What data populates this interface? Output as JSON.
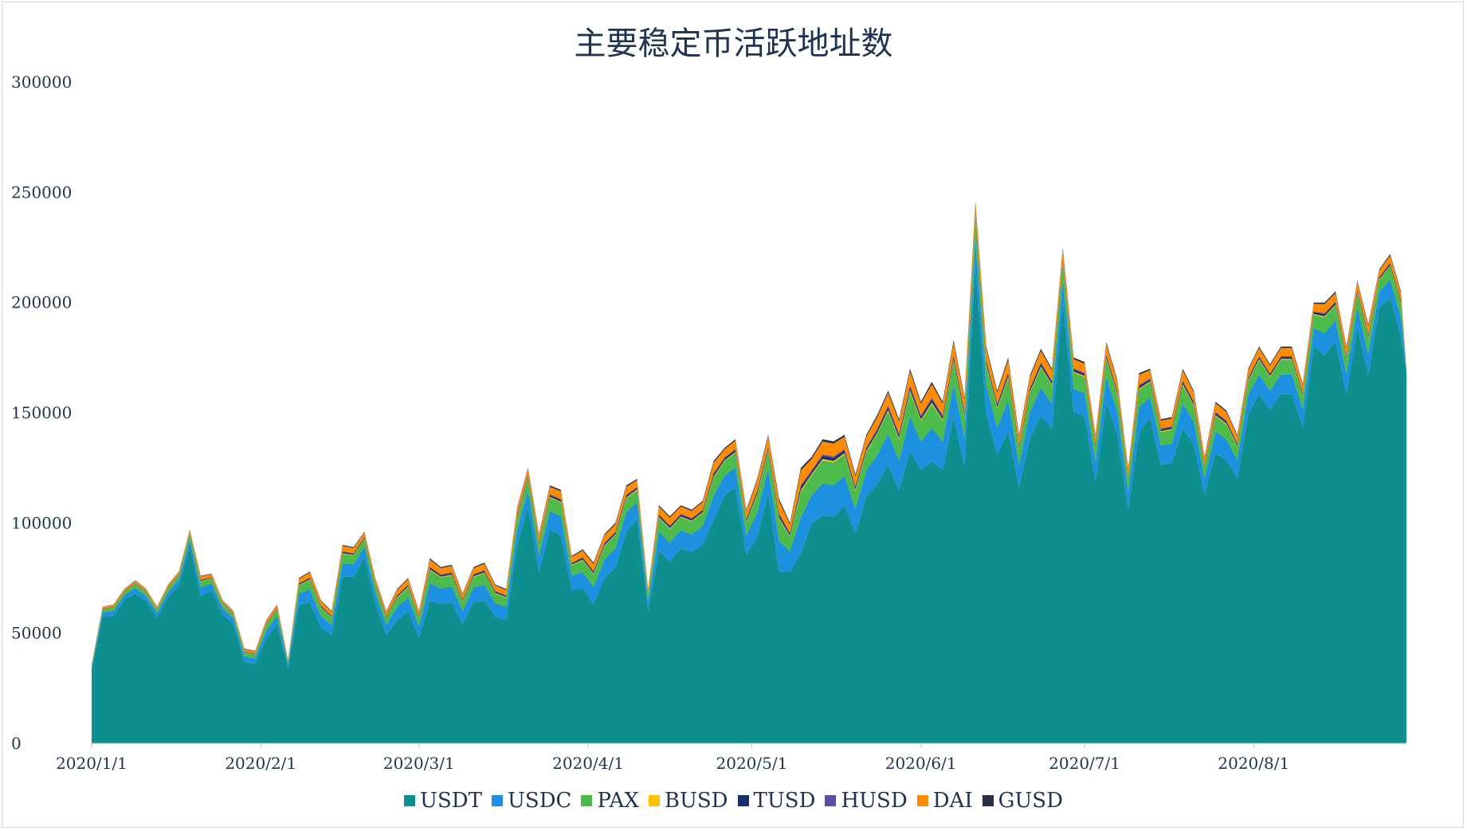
{
  "chart_data": {
    "type": "area",
    "stacked": true,
    "title": "主要稳定币活跃地址数",
    "xlabel": "",
    "ylabel": "",
    "ylim": [
      0,
      300000
    ],
    "yticks": [
      0,
      50000,
      100000,
      150000,
      200000,
      250000,
      300000
    ],
    "ytick_labels": [
      "0",
      "50000",
      "100000",
      "150000",
      "200000",
      "250000",
      "300000"
    ],
    "x_start": "2020-01-01",
    "x_end": "2020-08-29",
    "xtick_labels": [
      "2020/1/1",
      "2020/2/1",
      "2020/3/1",
      "2020/4/1",
      "2020/5/1",
      "2020/6/1",
      "2020/7/1",
      "2020/8/1"
    ],
    "xtick_dates": [
      "2020-01-01",
      "2020-02-01",
      "2020-03-01",
      "2020-04-01",
      "2020-05-01",
      "2020-06-01",
      "2020-07-01",
      "2020-08-01"
    ],
    "grid": false,
    "legend_position": "bottom",
    "total_series": {
      "name": "total",
      "dates": [
        "2020-01-01",
        "2020-01-03",
        "2020-01-05",
        "2020-01-07",
        "2020-01-09",
        "2020-01-11",
        "2020-01-13",
        "2020-01-15",
        "2020-01-17",
        "2020-01-19",
        "2020-01-21",
        "2020-01-23",
        "2020-01-25",
        "2020-01-27",
        "2020-01-29",
        "2020-01-31",
        "2020-02-02",
        "2020-02-04",
        "2020-02-06",
        "2020-02-08",
        "2020-02-10",
        "2020-02-12",
        "2020-02-14",
        "2020-02-16",
        "2020-02-18",
        "2020-02-20",
        "2020-02-22",
        "2020-02-24",
        "2020-02-26",
        "2020-02-28",
        "2020-03-01",
        "2020-03-03",
        "2020-03-05",
        "2020-03-07",
        "2020-03-09",
        "2020-03-11",
        "2020-03-13",
        "2020-03-15",
        "2020-03-17",
        "2020-03-19",
        "2020-03-21",
        "2020-03-23",
        "2020-03-25",
        "2020-03-27",
        "2020-03-29",
        "2020-03-31",
        "2020-04-02",
        "2020-04-04",
        "2020-04-06",
        "2020-04-08",
        "2020-04-10",
        "2020-04-12",
        "2020-04-14",
        "2020-04-16",
        "2020-04-18",
        "2020-04-20",
        "2020-04-22",
        "2020-04-24",
        "2020-04-26",
        "2020-04-28",
        "2020-04-30",
        "2020-05-02",
        "2020-05-04",
        "2020-05-06",
        "2020-05-08",
        "2020-05-10",
        "2020-05-12",
        "2020-05-14",
        "2020-05-16",
        "2020-05-18",
        "2020-05-20",
        "2020-05-22",
        "2020-05-24",
        "2020-05-26",
        "2020-05-28",
        "2020-05-30",
        "2020-06-01",
        "2020-06-03",
        "2020-06-05",
        "2020-06-07",
        "2020-06-09",
        "2020-06-11",
        "2020-06-13",
        "2020-06-15",
        "2020-06-17",
        "2020-06-19",
        "2020-06-21",
        "2020-06-23",
        "2020-06-25",
        "2020-06-27",
        "2020-06-29",
        "2020-07-01",
        "2020-07-03",
        "2020-07-05",
        "2020-07-07",
        "2020-07-09",
        "2020-07-11",
        "2020-07-13",
        "2020-07-15",
        "2020-07-17",
        "2020-07-19",
        "2020-07-21",
        "2020-07-23",
        "2020-07-25",
        "2020-07-27",
        "2020-07-29",
        "2020-07-31",
        "2020-08-02",
        "2020-08-04",
        "2020-08-06",
        "2020-08-08",
        "2020-08-10",
        "2020-08-12",
        "2020-08-14",
        "2020-08-16",
        "2020-08-18",
        "2020-08-20",
        "2020-08-22",
        "2020-08-24",
        "2020-08-26",
        "2020-08-28",
        "2020-08-29"
      ],
      "values": [
        36000,
        62000,
        63000,
        70000,
        74000,
        70000,
        62000,
        72000,
        78000,
        97000,
        76000,
        77000,
        65000,
        60000,
        43000,
        42000,
        56000,
        63000,
        38000,
        75000,
        78000,
        65000,
        60000,
        90000,
        89000,
        96000,
        75000,
        60000,
        70000,
        75000,
        60000,
        84000,
        80000,
        81000,
        68000,
        80000,
        82000,
        72000,
        70000,
        107000,
        125000,
        95000,
        117000,
        115000,
        85000,
        88000,
        82000,
        95000,
        100000,
        117000,
        120000,
        70000,
        108000,
        103000,
        108000,
        106000,
        110000,
        128000,
        134000,
        138000,
        106000,
        120000,
        140000,
        111000,
        100000,
        125000,
        130000,
        138000,
        137000,
        140000,
        122000,
        140000,
        149000,
        160000,
        147000,
        170000,
        155000,
        164000,
        155000,
        183000,
        157000,
        246000,
        180000,
        160000,
        175000,
        140000,
        167000,
        179000,
        170000,
        225000,
        175000,
        173000,
        140000,
        182000,
        165000,
        125000,
        168000,
        170000,
        147000,
        148000,
        170000,
        160000,
        130000,
        155000,
        151000,
        140000,
        170000,
        180000,
        172000,
        180000,
        180000,
        163000,
        200000,
        200000,
        205000,
        180000,
        210000,
        190000,
        215000,
        222000,
        205000,
        170000
      ]
    },
    "series": [
      {
        "name": "USDT",
        "color": "#0e8f8f",
        "share": "largest layer (bottom)"
      },
      {
        "name": "USDC",
        "color": "#1e90e0",
        "share": "second layer"
      },
      {
        "name": "PAX",
        "color": "#4cbb4c",
        "share": "third layer"
      },
      {
        "name": "BUSD",
        "color": "#ffc000",
        "share": "thin"
      },
      {
        "name": "TUSD",
        "color": "#16306b",
        "share": "thin"
      },
      {
        "name": "HUSD",
        "color": "#5b4fa6",
        "share": "thin"
      },
      {
        "name": "DAI",
        "color": "#ff8c00",
        "share": "thin (top)"
      },
      {
        "name": "GUSD",
        "color": "#2a2f45",
        "share": "thin"
      }
    ],
    "layer_fractions": {
      "USDT": [
        0.92,
        0.93,
        0.92,
        0.93,
        0.92,
        0.92,
        0.92,
        0.92,
        0.92,
        0.92,
        0.88,
        0.9,
        0.9,
        0.9,
        0.86,
        0.86,
        0.85,
        0.86,
        0.9,
        0.84,
        0.82,
        0.81,
        0.82,
        0.84,
        0.85,
        0.88,
        0.85,
        0.82,
        0.8,
        0.8,
        0.8,
        0.77,
        0.79,
        0.79,
        0.8,
        0.8,
        0.79,
        0.8,
        0.8,
        0.84,
        0.86,
        0.82,
        0.83,
        0.82,
        0.82,
        0.8,
        0.77,
        0.79,
        0.8,
        0.82,
        0.85,
        0.86,
        0.81,
        0.8,
        0.82,
        0.82,
        0.82,
        0.79,
        0.84,
        0.84,
        0.81,
        0.78,
        0.81,
        0.7,
        0.78,
        0.69,
        0.77,
        0.75,
        0.75,
        0.77,
        0.78,
        0.8,
        0.79,
        0.79,
        0.78,
        0.78,
        0.8,
        0.78,
        0.8,
        0.81,
        0.8,
        0.88,
        0.83,
        0.82,
        0.81,
        0.83,
        0.83,
        0.83,
        0.84,
        0.89,
        0.86,
        0.86,
        0.85,
        0.85,
        0.85,
        0.85,
        0.84,
        0.87,
        0.86,
        0.86,
        0.84,
        0.85,
        0.87,
        0.85,
        0.85,
        0.86,
        0.88,
        0.88,
        0.88,
        0.88,
        0.88,
        0.88,
        0.9,
        0.88,
        0.89,
        0.88,
        0.9,
        0.88,
        0.92,
        0.91,
        0.9,
        0.99
      ]
    }
  },
  "legend": [
    {
      "label": "USDT",
      "color": "#0e8f8f"
    },
    {
      "label": "USDC",
      "color": "#1e90e0"
    },
    {
      "label": "PAX",
      "color": "#4cbb4c"
    },
    {
      "label": "BUSD",
      "color": "#ffc000"
    },
    {
      "label": "TUSD",
      "color": "#16306b"
    },
    {
      "label": "HUSD",
      "color": "#5b4fa6"
    },
    {
      "label": "DAI",
      "color": "#ff8c00"
    },
    {
      "label": "GUSD",
      "color": "#2a2f45"
    }
  ]
}
